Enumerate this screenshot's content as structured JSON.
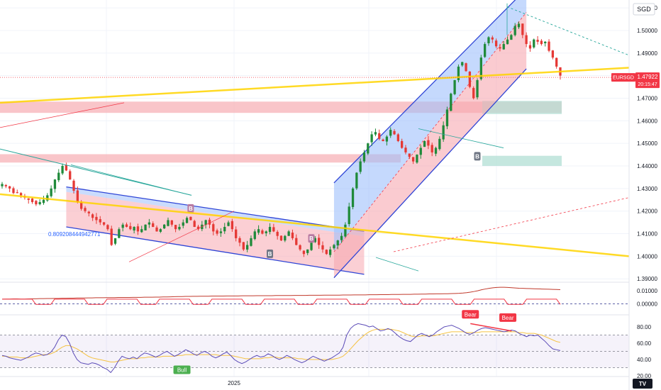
{
  "header": {
    "currency": "SGD"
  },
  "chart_data": {
    "type": "candlestick",
    "symbol": "EURSGD",
    "price_axis": {
      "ticks": [
        "1.51000",
        "1.50000",
        "1.49000",
        "1.48000",
        "1.47000",
        "1.46000",
        "1.45000",
        "1.44000",
        "1.43000",
        "1.42000",
        "1.41000",
        "1.40000",
        "1.39000"
      ],
      "range": [
        1.3885,
        1.5135
      ]
    },
    "last_price": {
      "symbol_label": "EURSGD",
      "value_label": "1.47922",
      "countdown": "20:15:47",
      "value": 1.47922
    },
    "fib_label": "0.809208444942771",
    "x_axis": {
      "labels": [
        "2025"
      ]
    },
    "price_series": [
      1.432,
      1.431,
      1.43,
      1.428,
      1.428,
      1.427,
      1.426,
      1.425,
      1.424,
      1.423,
      1.424,
      1.425,
      1.427,
      1.43,
      1.434,
      1.437,
      1.44,
      1.438,
      1.434,
      1.429,
      1.424,
      1.421,
      1.42,
      1.419,
      1.417,
      1.416,
      1.415,
      1.414,
      1.412,
      1.405,
      1.408,
      1.412,
      1.414,
      1.413,
      1.412,
      1.413,
      1.411,
      1.412,
      1.414,
      1.415,
      1.413,
      1.411,
      1.412,
      1.414,
      1.416,
      1.414,
      1.412,
      1.413,
      1.415,
      1.417,
      1.416,
      1.413,
      1.412,
      1.414,
      1.416,
      1.414,
      1.411,
      1.41,
      1.411,
      1.413,
      1.415,
      1.412,
      1.408,
      1.406,
      1.403,
      1.405,
      1.408,
      1.411,
      1.412,
      1.41,
      1.411,
      1.413,
      1.411,
      1.409,
      1.407,
      1.409,
      1.411,
      1.408,
      1.405,
      1.403,
      1.401,
      1.403,
      1.406,
      1.408,
      1.405,
      1.403,
      1.401,
      1.403,
      1.405,
      1.407,
      1.409,
      1.414,
      1.422,
      1.43,
      1.437,
      1.442,
      1.446,
      1.45,
      1.454,
      1.455,
      1.452,
      1.451,
      1.453,
      1.456,
      1.454,
      1.451,
      1.448,
      1.446,
      1.444,
      1.442,
      1.445,
      1.448,
      1.451,
      1.449,
      1.446,
      1.448,
      1.452,
      1.458,
      1.465,
      1.472,
      1.478,
      1.484,
      1.486,
      1.482,
      1.475,
      1.47,
      1.478,
      1.488,
      1.494,
      1.497,
      1.496,
      1.493,
      1.492,
      1.494,
      1.496,
      1.498,
      1.502,
      1.503,
      1.498,
      1.494,
      1.492,
      1.496,
      1.495,
      1.494,
      1.495,
      1.491,
      1.488,
      1.484,
      1.48
    ],
    "horizontal_zones": [
      {
        "name": "red-zone-upper",
        "from": 1.4635,
        "to": 1.4685,
        "color": "#f7b2b7"
      },
      {
        "name": "red-zone-lower",
        "from": 1.4415,
        "to": 1.4452,
        "color": "#f7b2b7"
      },
      {
        "name": "green-zone-upper",
        "from": 1.463,
        "to": 1.4688,
        "color": "#b2dfd4"
      },
      {
        "name": "green-zone-lower",
        "from": 1.44,
        "to": 1.4445,
        "color": "#b2dfd4"
      }
    ],
    "markers": [
      {
        "label": "B",
        "index": 50,
        "price": 1.4212,
        "color": "#b87ba2"
      },
      {
        "label": "B",
        "index": 71,
        "price": 1.4011,
        "color": "#6f7684"
      },
      {
        "label": "B",
        "index": 82,
        "price": 1.4079,
        "color": "#b87ba2"
      },
      {
        "label": "B",
        "index": 126,
        "price": 1.4443,
        "color": "#6f7684"
      }
    ],
    "indicator_1": {
      "ticks": [
        "0.01000",
        "0.00000"
      ],
      "range": [
        -0.0085,
        0.0165
      ],
      "series": [
        0.0035,
        0.0036,
        0.0036,
        0.0037,
        0.0037,
        0.0036,
        0.0036,
        0.0037,
        0.0038,
        0.0038,
        0.0039,
        0.0039,
        0.004,
        0.004,
        0.0041,
        0.0041,
        0.0042,
        0.0042,
        0.0043,
        0.0043,
        0.0044,
        0.0044,
        0.0044,
        0.0045,
        0.0045,
        0.0046,
        0.0046,
        0.0046,
        0.0047,
        0.0047,
        0.0047,
        0.0048,
        0.0048,
        0.0048,
        0.0048,
        0.0049,
        0.0049,
        0.0049,
        0.005,
        0.005,
        0.005,
        0.0051,
        0.0051,
        0.0052,
        0.0052,
        0.0053,
        0.0054,
        0.0055,
        0.0055,
        0.0056,
        0.0056,
        0.0057,
        0.0057,
        0.0058,
        0.0058,
        0.0058,
        0.0059,
        0.0059,
        0.0059,
        0.0059,
        0.006,
        0.006,
        0.006,
        0.006,
        0.0061,
        0.0061,
        0.0061,
        0.0061,
        0.0062,
        0.0062,
        0.0062,
        0.0062,
        0.0062,
        0.0063,
        0.0063,
        0.0063,
        0.0063,
        0.0063,
        0.0064,
        0.0064,
        0.0064,
        0.0064,
        0.0065,
        0.0065,
        0.0065,
        0.0065,
        0.0066,
        0.0066,
        0.0066,
        0.0066,
        0.0066,
        0.0067,
        0.0067,
        0.0067,
        0.0068,
        0.0068,
        0.0068,
        0.0068,
        0.0069,
        0.0069,
        0.0069,
        0.007,
        0.007,
        0.007,
        0.0071,
        0.0071,
        0.0071,
        0.0072,
        0.0072,
        0.0072,
        0.0073,
        0.0073,
        0.0074,
        0.0074,
        0.0075,
        0.0075,
        0.0076,
        0.0076,
        0.0077,
        0.0077,
        0.0078,
        0.0079,
        0.008,
        0.0082,
        0.0085,
        0.0089,
        0.0094,
        0.01,
        0.0107,
        0.0113,
        0.0118,
        0.0122,
        0.0125,
        0.0126,
        0.0126,
        0.0125,
        0.0123,
        0.0121,
        0.0119,
        0.0118,
        0.0117,
        0.0116,
        0.0115,
        0.0114,
        0.0113,
        0.0112,
        0.0111,
        0.011,
        0.0109,
        0.0108
      ]
    },
    "indicator_2": {
      "ticks": [
        "80.00",
        "60.00",
        "40.00",
        "20.00"
      ],
      "range": [
        20,
        93
      ],
      "levels": [
        70,
        50,
        30
      ],
      "rsi_series": [
        45,
        44,
        42,
        41,
        40,
        39,
        41,
        43,
        46,
        48,
        47,
        45,
        46,
        49,
        55,
        64,
        70,
        68,
        60,
        48,
        40,
        36,
        35,
        34,
        36,
        35,
        33,
        30,
        28,
        24,
        30,
        38,
        44,
        42,
        41,
        43,
        41,
        45,
        48,
        47,
        45,
        43,
        45,
        48,
        50,
        47,
        44,
        46,
        49,
        52,
        50,
        47,
        45,
        48,
        50,
        48,
        44,
        42,
        44,
        47,
        49,
        45,
        40,
        37,
        35,
        37,
        40,
        43,
        45,
        43,
        44,
        47,
        45,
        42,
        40,
        42,
        45,
        43,
        40,
        38,
        36,
        38,
        41,
        44,
        42,
        40,
        38,
        40,
        42,
        45,
        48,
        55,
        70,
        78,
        82,
        84,
        83,
        82,
        80,
        81,
        78,
        75,
        76,
        78,
        76,
        72,
        68,
        65,
        63,
        62,
        66,
        70,
        72,
        70,
        68,
        70,
        74,
        77,
        80,
        81,
        82,
        80,
        78,
        75,
        72,
        71,
        73,
        76,
        78,
        79,
        78,
        77,
        76,
        75,
        74,
        75,
        76,
        75,
        72,
        70,
        68,
        70,
        69,
        70,
        66,
        62,
        57,
        53,
        52,
        51
      ],
      "signal_series": [
        44,
        44,
        43,
        43,
        43,
        42,
        42,
        42,
        43,
        44,
        45,
        46,
        46,
        47,
        49,
        52,
        55,
        57,
        57,
        55,
        53,
        50,
        47,
        44,
        42,
        41,
        40,
        39,
        38,
        37,
        37,
        38,
        39,
        40,
        41,
        41,
        41,
        42,
        42,
        43,
        43,
        43,
        43,
        44,
        44,
        44,
        44,
        45,
        45,
        46,
        46,
        46,
        46,
        46,
        46,
        46,
        46,
        46,
        45,
        45,
        45,
        45,
        44,
        43,
        42,
        41,
        41,
        41,
        41,
        41,
        42,
        42,
        43,
        43,
        42,
        42,
        42,
        42,
        42,
        41,
        41,
        40,
        40,
        40,
        40,
        40,
        40,
        40,
        40,
        41,
        42,
        44,
        48,
        53,
        58,
        63,
        67,
        71,
        74,
        76,
        77,
        77,
        77,
        77,
        77,
        76,
        75,
        73,
        71,
        69,
        68,
        68,
        69,
        69,
        69,
        69,
        70,
        71,
        72,
        73,
        74,
        74,
        74,
        74,
        73,
        73,
        73,
        73,
        74,
        74,
        74,
        74,
        74,
        74,
        74,
        74,
        74,
        74,
        73,
        73,
        72,
        72,
        72,
        71,
        70,
        68,
        66,
        64,
        62,
        61
      ],
      "signals": [
        {
          "label": "Bull",
          "index": 48,
          "value": 30,
          "color": "#4caf50"
        },
        {
          "label": "Bear",
          "index": 125,
          "value": 91,
          "color": "#f23645"
        },
        {
          "label": "Bear",
          "index": 135,
          "value": 87,
          "color": "#f23645"
        }
      ]
    }
  }
}
